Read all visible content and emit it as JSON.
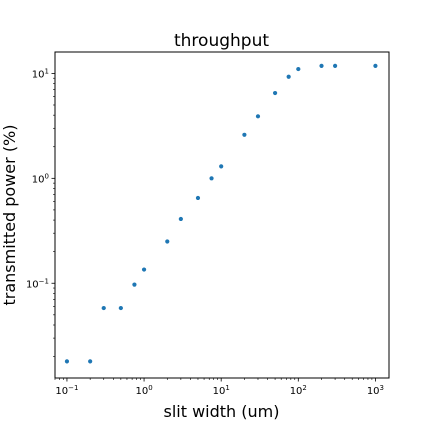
{
  "chart_data": {
    "type": "scatter",
    "title": "throughput",
    "xlabel": "slit width (um)",
    "ylabel": "transmitted power (%)",
    "xscale": "log",
    "yscale": "log",
    "xlim": [
      0.07,
      1500
    ],
    "ylim": [
      0.0125,
      16
    ],
    "grid": false,
    "marker_color": "#1f77b4",
    "x_ticks": [
      {
        "value": 0.1,
        "base": "10",
        "exp": "−1"
      },
      {
        "value": 1,
        "base": "10",
        "exp": "0"
      },
      {
        "value": 10,
        "base": "10",
        "exp": "1"
      },
      {
        "value": 100,
        "base": "10",
        "exp": "2"
      },
      {
        "value": 1000,
        "base": "10",
        "exp": "3"
      }
    ],
    "y_ticks": [
      {
        "value": 0.1,
        "base": "10",
        "exp": "−1"
      },
      {
        "value": 1,
        "base": "10",
        "exp": "0"
      },
      {
        "value": 10,
        "base": "10",
        "exp": "1"
      }
    ],
    "series": [
      {
        "x": [
          0.1,
          0.2,
          0.3,
          0.5,
          0.75,
          1,
          2,
          3,
          5,
          7.5,
          10,
          20,
          30,
          50,
          75,
          100,
          200,
          300,
          1000
        ],
        "y": [
          0.018,
          0.018,
          0.058,
          0.058,
          0.097,
          0.135,
          0.25,
          0.41,
          0.65,
          1.0,
          1.3,
          2.6,
          3.9,
          6.5,
          9.3,
          11.0,
          11.8,
          11.8,
          11.8
        ]
      }
    ]
  }
}
